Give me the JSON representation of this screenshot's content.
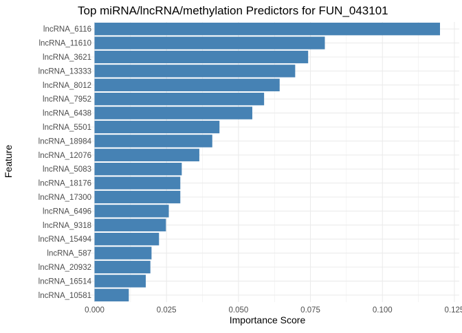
{
  "chart_data": {
    "type": "bar",
    "orientation": "horizontal",
    "title": "Top miRNA/lncRNA/methylation Predictors for FUN_043101",
    "xlabel": "Importance Score",
    "ylabel": "Feature",
    "xlim": [
      0,
      0.125
    ],
    "x_ticks": [
      {
        "value": 0,
        "label": "0.000"
      },
      {
        "value": 0.025,
        "label": "0.025"
      },
      {
        "value": 0.05,
        "label": "0.050"
      },
      {
        "value": 0.075,
        "label": "0.075"
      },
      {
        "value": 0.1,
        "label": "0.100"
      },
      {
        "value": 0.125,
        "label": "0.125"
      }
    ],
    "grid": true,
    "bar_color": "#4682B4",
    "gridline_color": "#EBEBEB",
    "categories": [
      "lncRNA_6116",
      "lncRNA_11610",
      "lncRNA_3621",
      "lncRNA_13333",
      "lncRNA_8012",
      "lncRNA_7952",
      "lncRNA_6438",
      "lncRNA_5501",
      "lncRNA_18984",
      "lncRNA_12076",
      "lncRNA_5083",
      "lncRNA_18176",
      "lncRNA_17300",
      "lncRNA_6496",
      "lncRNA_9318",
      "lncRNA_15494",
      "lncRNA_587",
      "lncRNA_20932",
      "lncRNA_16514",
      "lncRNA_10581"
    ],
    "values": [
      0.12,
      0.08,
      0.0742,
      0.0697,
      0.0643,
      0.0589,
      0.0548,
      0.0434,
      0.0409,
      0.0364,
      0.0303,
      0.0298,
      0.0298,
      0.0258,
      0.0248,
      0.0224,
      0.0198,
      0.0194,
      0.0178,
      0.0119
    ]
  }
}
